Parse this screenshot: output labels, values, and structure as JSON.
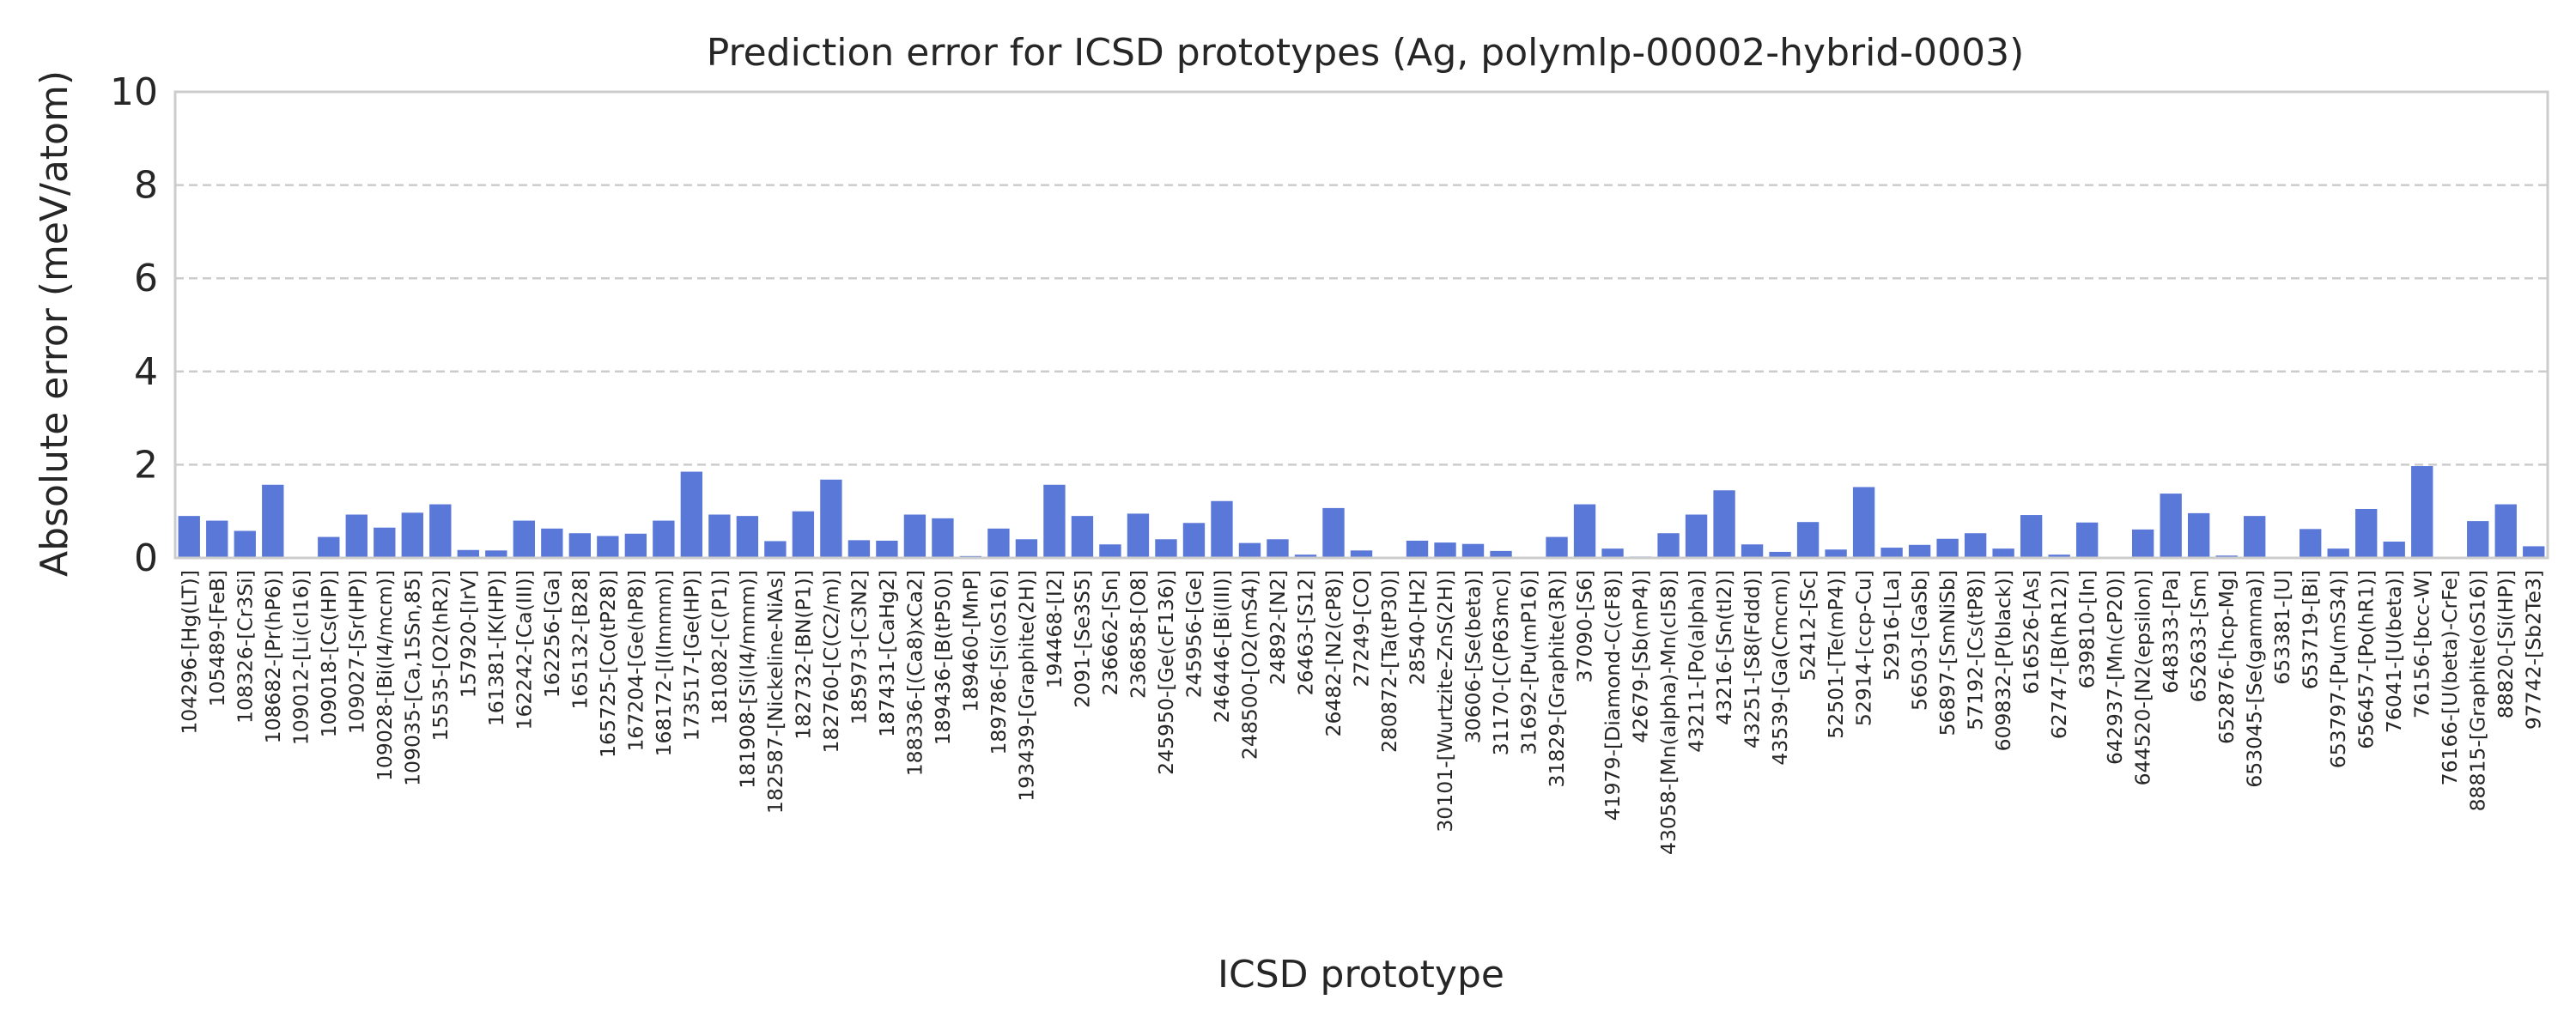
{
  "chart_data": {
    "type": "bar",
    "title": "Prediction error for ICSD prototypes (Ag, polymlp-00002-hybrid-0003)",
    "xlabel": "ICSD prototype",
    "ylabel": "Absolute error (meV/atom)",
    "ylim": [
      0,
      10
    ],
    "yticks": [
      "0",
      "2",
      "4",
      "6",
      "8",
      "10"
    ],
    "grid": "y-dashed",
    "bar_color": "#5a78d8",
    "categories": [
      "104296-[Hg(LT)]",
      "105489-[FeB]",
      "108326-[Cr3Si]",
      "108682-[Pr(hP6)]",
      "109012-[Li(cI16)]",
      "109018-[Cs(HP)]",
      "109027-[Sr(HP)]",
      "109028-[Bi(I4/mcm)]",
      "109035-[Ca,15Sn,85]",
      "15535-[O2(hR2)]",
      "157920-[IrV]",
      "161381-[K(HP)]",
      "162242-[Ca(III)]",
      "162256-[Ga]",
      "165132-[B28]",
      "165725-[Co(tP28)]",
      "167204-[Ge(hP8)]",
      "168172-[I(Immm)]",
      "173517-[Ge(HP)]",
      "181082-[C(P1)]",
      "181908-[Si(I4/mmm)]",
      "182587-[Nickeline-NiAs]",
      "182732-[BN(P1)]",
      "182760-[C(C2/m)]",
      "185973-[C3N2]",
      "187431-[CaHg2]",
      "188336-[(Ca8)xCa2]",
      "189436-[B(tP50)]",
      "189460-[MnP]",
      "189786-[Si(oS16)]",
      "193439-[Graphite(2H)]",
      "194468-[I2]",
      "2091-[Se3S5]",
      "236662-[Sn]",
      "236858-[O8]",
      "245950-[Ge(cF136)]",
      "245956-[Ge]",
      "246446-[Bi(III)]",
      "248500-[O2(mS4)]",
      "24892-[N2]",
      "26463-[S12]",
      "26482-[N2(cP8)]",
      "27249-[CO]",
      "280872-[Ta(tP30)]",
      "28540-[H2]",
      "30101-[Wurtzite-ZnS(2H)]",
      "30606-[Se(beta)]",
      "31170-[C(P63mc)]",
      "31692-[Pu(mP16)]",
      "31829-[Graphite(3R)]",
      "37090-[S6]",
      "41979-[Diamond-C(cF8)]",
      "42679-[Sb(mP4)]",
      "43058-[Mn(alpha)-Mn(cI58)]",
      "43211-[Po(alpha)]",
      "43216-[Sn(tI2)]",
      "43251-[S8(Fddd)]",
      "43539-[Ga(Cmcm)]",
      "52412-[Sc]",
      "52501-[Te(mP4)]",
      "52914-[ccp-Cu]",
      "52916-[La]",
      "56503-[GaSb]",
      "56897-[SmNiSb]",
      "57192-[Cs(tP8)]",
      "609832-[P(black)]",
      "616526-[As]",
      "62747-[B(hR12)]",
      "639810-[In]",
      "642937-[Mn(cP20)]",
      "644520-[N2(epsilon)]",
      "648333-[Pa]",
      "652633-[Sm]",
      "652876-[hcp-Mg]",
      "653045-[Se(gamma)]",
      "653381-[U]",
      "653719-[Bi]",
      "653797-[Pu(mS34)]",
      "656457-[Po(hR1)]",
      "76041-[U(beta)]",
      "76156-[bcc-W]",
      "76166-[U(beta)-CrFe]",
      "88815-[Graphite(oS16)]",
      "88820-[Si(HP)]",
      "97742-[Sb2Te3]"
    ],
    "values": [
      0.9,
      0.8,
      0.58,
      1.57,
      0.02,
      0.45,
      0.93,
      0.65,
      0.97,
      1.15,
      0.17,
      0.16,
      0.8,
      0.63,
      0.53,
      0.47,
      0.52,
      0.8,
      1.85,
      0.93,
      0.9,
      0.36,
      1.0,
      1.68,
      0.38,
      0.37,
      0.93,
      0.85,
      0.04,
      0.63,
      0.4,
      1.57,
      0.9,
      0.29,
      0.95,
      0.4,
      0.75,
      1.22,
      0.32,
      0.4,
      0.07,
      1.07,
      0.16,
      0.02,
      0.37,
      0.33,
      0.3,
      0.15,
      0.02,
      0.45,
      1.15,
      0.2,
      0.03,
      0.53,
      0.93,
      1.45,
      0.29,
      0.13,
      0.77,
      0.18,
      1.52,
      0.22,
      0.28,
      0.41,
      0.53,
      0.2,
      0.92,
      0.07,
      0.76,
      0.02,
      0.61,
      1.38,
      0.96,
      0.05,
      0.9,
      0.01,
      0.62,
      0.2,
      1.05,
      0.35,
      1.97,
      0.02,
      0.79,
      1.15,
      0.25
    ]
  }
}
